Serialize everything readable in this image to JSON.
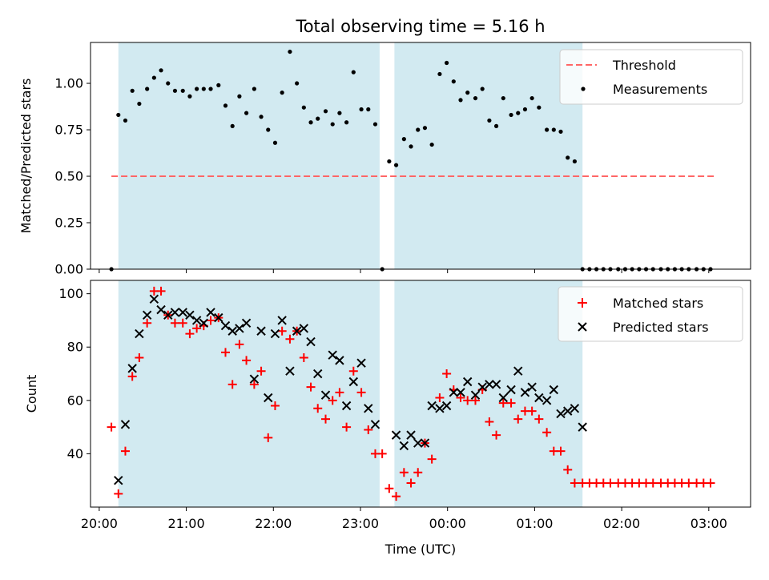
{
  "colors": {
    "band": "#add8e6",
    "threshold": "#ff6666",
    "matched": "#ff0000",
    "predicted": "#000000",
    "measure": "#000000"
  },
  "chart_data": [
    {
      "type": "scatter",
      "title": "Total observing time = 5.16 h",
      "ylabel": "Matched/Predicted stars",
      "xlabel": "",
      "xlim": [
        19.9,
        27.48
      ],
      "ylim": [
        0,
        1.22
      ],
      "yticks": [
        "0.00",
        "0.25",
        "0.50",
        "0.75",
        "1.00"
      ],
      "ytick_values": [
        0,
        0.25,
        0.5,
        0.75,
        1.0
      ],
      "grid": false,
      "legend_position": "top-right",
      "bands": [
        [
          20.22,
          23.22
        ],
        [
          23.39,
          25.55
        ]
      ],
      "threshold": {
        "name": "Threshold",
        "value": 0.5,
        "x": [
          20.14,
          27.06
        ]
      },
      "series": [
        {
          "name": "Measurements",
          "x": [
            20.14,
            20.22,
            20.3,
            20.38,
            20.46,
            20.55,
            20.63,
            20.71,
            20.79,
            20.87,
            20.96,
            21.04,
            21.12,
            21.2,
            21.28,
            21.37,
            21.45,
            21.53,
            21.61,
            21.69,
            21.78,
            21.86,
            21.94,
            22.02,
            22.1,
            22.19,
            22.27,
            22.35,
            22.43,
            22.51,
            22.6,
            22.68,
            22.76,
            22.84,
            22.92,
            23.01,
            23.09,
            23.17,
            23.25,
            23.33,
            23.41,
            23.5,
            23.58,
            23.66,
            23.74,
            23.82,
            23.91,
            23.99,
            24.07,
            24.15,
            24.23,
            24.32,
            24.4,
            24.48,
            24.56,
            24.64,
            24.73,
            24.81,
            24.89,
            24.97,
            25.05,
            25.14,
            25.22,
            25.3,
            25.38,
            25.46,
            25.55,
            25.63,
            25.71,
            25.79,
            25.87,
            25.96,
            26.04,
            26.12,
            26.2,
            26.28,
            26.36,
            26.45,
            26.53,
            26.61,
            26.69,
            26.77,
            26.86,
            26.94,
            27.02
          ],
          "y": [
            0.0,
            0.83,
            0.8,
            0.96,
            0.89,
            0.97,
            1.03,
            1.07,
            1.0,
            0.96,
            0.96,
            0.93,
            0.97,
            0.97,
            0.97,
            0.99,
            0.88,
            0.77,
            0.93,
            0.84,
            0.97,
            0.82,
            0.75,
            0.68,
            0.95,
            1.17,
            1.0,
            0.87,
            0.79,
            0.81,
            0.85,
            0.78,
            0.84,
            0.79,
            1.06,
            0.86,
            0.86,
            0.78,
            0.0,
            0.58,
            0.56,
            0.7,
            0.66,
            0.75,
            0.76,
            0.67,
            1.05,
            1.11,
            1.01,
            0.91,
            0.95,
            0.92,
            0.97,
            0.8,
            0.77,
            0.92,
            0.83,
            0.84,
            0.86,
            0.92,
            0.87,
            0.75,
            0.75,
            0.74,
            0.6,
            0.58,
            0.0,
            0.0,
            0.0,
            0.0,
            0.0,
            0.0,
            0.0,
            0.0,
            0.0,
            0.0,
            0.0,
            0.0,
            0.0,
            0.0,
            0.0,
            0.0,
            0.0,
            0.0,
            0.0
          ]
        }
      ]
    },
    {
      "type": "scatter",
      "title": "",
      "ylabel": "Count",
      "xlabel": "Time (UTC)",
      "xlim": [
        19.9,
        27.48
      ],
      "ylim": [
        20,
        105
      ],
      "yticks": [
        "40",
        "60",
        "80",
        "100"
      ],
      "ytick_values": [
        40,
        60,
        80,
        100
      ],
      "xticks": [
        "20:00",
        "21:00",
        "22:00",
        "23:00",
        "00:00",
        "01:00",
        "02:00",
        "03:00"
      ],
      "xtick_values": [
        20,
        21,
        22,
        23,
        24,
        25,
        26,
        27
      ],
      "grid": false,
      "legend_position": "top-right",
      "bands": [
        [
          20.22,
          23.22
        ],
        [
          23.39,
          25.55
        ]
      ],
      "series": [
        {
          "name": "Matched stars",
          "marker": "plus",
          "x": [
            20.14,
            20.22,
            20.3,
            20.38,
            20.46,
            20.55,
            20.63,
            20.71,
            20.79,
            20.87,
            20.96,
            21.04,
            21.12,
            21.2,
            21.28,
            21.37,
            21.45,
            21.53,
            21.61,
            21.69,
            21.78,
            21.86,
            21.94,
            22.02,
            22.1,
            22.19,
            22.27,
            22.35,
            22.43,
            22.51,
            22.6,
            22.68,
            22.76,
            22.84,
            22.92,
            23.01,
            23.09,
            23.17,
            23.25,
            23.33,
            23.41,
            23.5,
            23.58,
            23.66,
            23.74,
            23.82,
            23.91,
            23.99,
            24.07,
            24.15,
            24.23,
            24.32,
            24.4,
            24.48,
            24.56,
            24.64,
            24.73,
            24.81,
            24.89,
            24.97,
            25.05,
            25.14,
            25.22,
            25.3,
            25.38,
            25.46,
            25.55,
            25.63,
            25.71,
            25.79,
            25.87,
            25.96,
            26.04,
            26.12,
            26.2,
            26.28,
            26.36,
            26.45,
            26.53,
            26.61,
            26.69,
            26.77,
            26.86,
            26.94,
            27.02
          ],
          "y": [
            50,
            25,
            41,
            69,
            76,
            89,
            101,
            101,
            92,
            89,
            89,
            85,
            87,
            88,
            90,
            91,
            78,
            66,
            81,
            75,
            66,
            71,
            46,
            58,
            86,
            83,
            86,
            76,
            65,
            57,
            53,
            60,
            63,
            50,
            71,
            63,
            49,
            40,
            40,
            27,
            24,
            33,
            29,
            33,
            44,
            38,
            61,
            70,
            64,
            61,
            60,
            60,
            64,
            52,
            47,
            59,
            59,
            53,
            56,
            56,
            53,
            48,
            41,
            41,
            34,
            29,
            29,
            29,
            29,
            29,
            29,
            29,
            29,
            29,
            29,
            29,
            29,
            29,
            29,
            29,
            29,
            29,
            29,
            29,
            29
          ]
        },
        {
          "name": "Predicted stars",
          "marker": "x",
          "x": [
            20.22,
            20.3,
            20.38,
            20.46,
            20.55,
            20.63,
            20.71,
            20.79,
            20.87,
            20.96,
            21.04,
            21.12,
            21.2,
            21.28,
            21.37,
            21.45,
            21.53,
            21.61,
            21.69,
            21.78,
            21.86,
            21.94,
            22.02,
            22.1,
            22.19,
            22.27,
            22.35,
            22.43,
            22.51,
            22.6,
            22.68,
            22.76,
            22.84,
            22.92,
            23.01,
            23.09,
            23.17,
            23.41,
            23.5,
            23.58,
            23.66,
            23.74,
            23.82,
            23.91,
            23.99,
            24.07,
            24.15,
            24.23,
            24.32,
            24.4,
            24.48,
            24.56,
            24.64,
            24.73,
            24.81,
            24.89,
            24.97,
            25.05,
            25.14,
            25.22,
            25.3,
            25.38,
            25.46,
            25.55
          ],
          "y": [
            30,
            51,
            72,
            85,
            92,
            98,
            94,
            92,
            93,
            93,
            92,
            90,
            89,
            93,
            91,
            88,
            86,
            87,
            89,
            68,
            86,
            61,
            85,
            90,
            71,
            86,
            87,
            82,
            70,
            62,
            77,
            75,
            58,
            67,
            74,
            57,
            51,
            47,
            43,
            47,
            44,
            44,
            58,
            57,
            58,
            63,
            63,
            67,
            62,
            65,
            66,
            66,
            61,
            64,
            71,
            63,
            65,
            61,
            60,
            64,
            55,
            56,
            57,
            50
          ]
        }
      ]
    }
  ]
}
